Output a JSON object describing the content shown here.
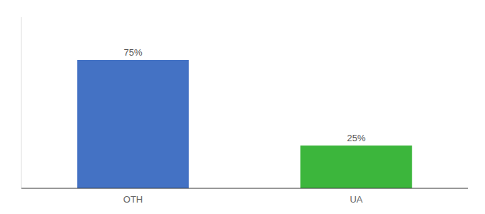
{
  "chart_data": {
    "type": "bar",
    "categories": [
      "OTH",
      "UA"
    ],
    "values": [
      75,
      25
    ],
    "value_labels": [
      "75%",
      "25%"
    ],
    "colors": [
      "#4472c4",
      "#3cb63c"
    ],
    "ylim": [
      0,
      100
    ],
    "data_labels": true,
    "tick_labels": "x"
  }
}
